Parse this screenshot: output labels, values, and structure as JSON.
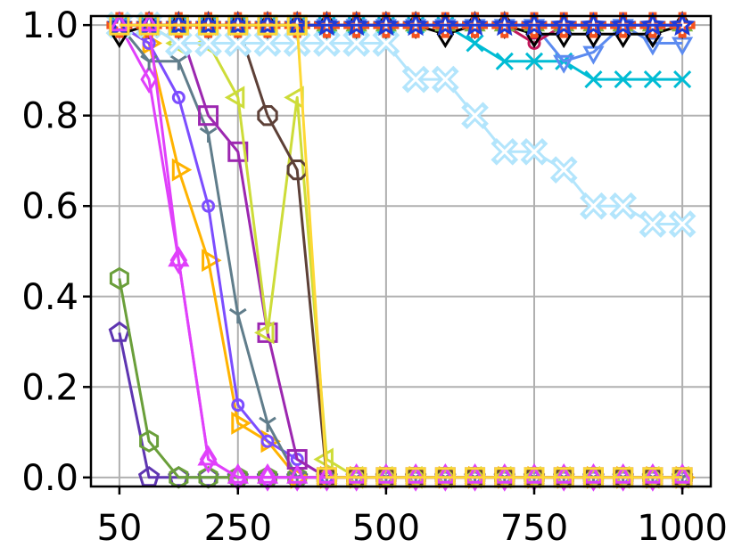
{
  "chart_data": {
    "type": "line",
    "title": "",
    "xlabel": "",
    "ylabel": "",
    "xlim": [
      2,
      1048
    ],
    "ylim": [
      -0.02,
      1.02
    ],
    "grid": true,
    "legend": "none",
    "x_ticks": [
      50,
      250,
      500,
      750,
      1000
    ],
    "x_tick_labels": [
      "50",
      "250",
      "500",
      "750",
      "1000"
    ],
    "y_ticks": [
      0.0,
      0.2,
      0.4,
      0.6,
      0.8,
      1.0
    ],
    "y_tick_labels": [
      "0.0",
      "0.2",
      "0.4",
      "0.6",
      "0.8",
      "1.0"
    ],
    "x": [
      50,
      100,
      150,
      200,
      250,
      300,
      350,
      400,
      450,
      500,
      550,
      600,
      650,
      700,
      750,
      800,
      850,
      900,
      950,
      1000
    ],
    "series": [
      {
        "marker": "pentagon",
        "color": "#5e35b1",
        "values": [
          0.32,
          0.0,
          0.0,
          0.0,
          0.0,
          0.0,
          0.0,
          0.0,
          0.0,
          0.0,
          0.0,
          0.0,
          0.0,
          0.0,
          0.0,
          0.0,
          0.0,
          0.0,
          0.0,
          0.0
        ]
      },
      {
        "marker": "hexagon",
        "color": "#6a9f3a",
        "values": [
          0.44,
          0.08,
          0.0,
          0.0,
          0.0,
          0.0,
          0.0,
          0.0,
          0.0,
          0.0,
          0.0,
          0.0,
          0.0,
          0.0,
          0.0,
          0.0,
          0.0,
          0.0,
          0.0,
          0.0
        ]
      },
      {
        "marker": "diamond",
        "color": "#e040fb",
        "values": [
          1.0,
          0.88,
          0.48,
          0.04,
          0.0,
          0.0,
          0.0,
          0.0,
          0.0,
          0.0,
          0.0,
          0.0,
          0.0,
          0.0,
          0.0,
          0.0,
          0.0,
          0.0,
          0.0,
          0.0
        ]
      },
      {
        "marker": "triangle-right",
        "color": "#ffb300",
        "values": [
          1.0,
          0.96,
          0.68,
          0.48,
          0.12,
          0.08,
          0.0,
          0.0,
          0.0,
          0.0,
          0.0,
          0.0,
          0.0,
          0.0,
          0.0,
          0.0,
          0.0,
          0.0,
          0.0,
          0.0
        ]
      },
      {
        "marker": "circle",
        "color": "#7c4dff",
        "values": [
          1.0,
          0.96,
          0.84,
          0.6,
          0.16,
          0.08,
          0.04,
          0.0,
          0.0,
          0.0,
          0.0,
          0.0,
          0.0,
          0.0,
          0.0,
          0.0,
          0.0,
          0.0,
          0.0,
          0.0
        ]
      },
      {
        "marker": "tri-down",
        "color": "#607d8b",
        "values": [
          1.0,
          0.92,
          0.92,
          0.76,
          0.36,
          0.12,
          0.0,
          0.0,
          0.0,
          0.0,
          0.0,
          0.0,
          0.0,
          0.0,
          0.0,
          0.0,
          0.0,
          0.0,
          0.0,
          0.0
        ]
      },
      {
        "marker": "square",
        "color": "#9c27b0",
        "values": [
          1.0,
          1.0,
          1.0,
          0.8,
          0.72,
          0.32,
          0.04,
          0.0,
          0.0,
          0.0,
          0.0,
          0.0,
          0.0,
          0.0,
          0.0,
          0.0,
          0.0,
          0.0,
          0.0,
          0.0
        ]
      },
      {
        "marker": "triangle-left",
        "color": "#cddc39",
        "values": [
          1.0,
          1.0,
          0.96,
          0.96,
          0.84,
          0.32,
          0.84,
          0.04,
          0.0,
          0.0,
          0.0,
          0.0,
          0.0,
          0.0,
          0.0,
          0.0,
          0.0,
          0.0,
          0.0,
          0.0
        ]
      },
      {
        "marker": "octagon",
        "color": "#5d4037",
        "values": [
          1.0,
          1.0,
          1.0,
          1.0,
          1.0,
          0.8,
          0.68,
          0.0,
          0.0,
          0.0,
          0.0,
          0.0,
          0.0,
          0.0,
          0.0,
          0.0,
          0.0,
          0.0,
          0.0,
          0.0
        ]
      },
      {
        "marker": "x-thick",
        "color": "#b3e5fc",
        "values": [
          1.0,
          1.0,
          0.96,
          0.96,
          0.96,
          0.96,
          0.96,
          0.96,
          0.96,
          0.96,
          0.88,
          0.88,
          0.8,
          0.72,
          0.72,
          0.68,
          0.6,
          0.6,
          0.56,
          0.56
        ]
      },
      {
        "marker": "x",
        "color": "#00bcd4",
        "values": [
          1.0,
          1.0,
          1.0,
          1.0,
          1.0,
          1.0,
          1.0,
          1.0,
          1.0,
          1.0,
          1.0,
          1.0,
          0.96,
          0.92,
          0.92,
          0.92,
          0.88,
          0.88,
          0.88,
          0.88
        ]
      },
      {
        "marker": "triangle-down",
        "color": "#5c8bf0",
        "values": [
          1.0,
          1.0,
          1.0,
          1.0,
          1.0,
          1.0,
          1.0,
          1.0,
          1.0,
          1.0,
          1.0,
          1.0,
          1.0,
          1.0,
          1.0,
          0.92,
          0.94,
          1.0,
          0.96,
          0.96
        ]
      },
      {
        "marker": "circle",
        "color": "#c2185b",
        "values": [
          1.0,
          1.0,
          1.0,
          1.0,
          1.0,
          1.0,
          1.0,
          1.0,
          1.0,
          1.0,
          1.0,
          1.0,
          1.0,
          1.0,
          0.96,
          1.0,
          1.0,
          1.0,
          1.0,
          1.0
        ]
      },
      {
        "marker": "diamond",
        "color": "#000000",
        "values": [
          0.98,
          1.0,
          1.0,
          1.0,
          1.0,
          1.0,
          1.0,
          1.0,
          1.0,
          1.0,
          1.0,
          0.98,
          1.0,
          1.0,
          0.98,
          0.98,
          0.98,
          0.98,
          0.98,
          1.0
        ]
      },
      {
        "marker": "triangle-up",
        "color": "#7cb342",
        "values": [
          1.0,
          1.0,
          1.0,
          1.0,
          1.0,
          1.0,
          1.0,
          1.0,
          1.0,
          1.0,
          1.0,
          1.0,
          1.0,
          1.0,
          1.0,
          1.0,
          1.0,
          1.0,
          1.0,
          1.0
        ]
      },
      {
        "marker": "plus-thick",
        "color": "#f4511e",
        "values": [
          1.0,
          1.0,
          1.0,
          1.0,
          1.0,
          1.0,
          1.0,
          1.0,
          1.0,
          1.0,
          1.0,
          1.0,
          1.0,
          1.0,
          1.0,
          1.0,
          1.0,
          1.0,
          1.0,
          1.0
        ]
      },
      {
        "marker": "star",
        "color": "#1e3bd6",
        "values": [
          1.0,
          1.0,
          1.0,
          1.0,
          1.0,
          1.0,
          1.0,
          1.0,
          1.0,
          1.0,
          1.0,
          1.0,
          1.0,
          1.0,
          1.0,
          1.0,
          1.0,
          1.0,
          1.0,
          1.0
        ]
      },
      {
        "marker": "triangle-up",
        "color": "#e040fb",
        "values": [
          1.0,
          1.0,
          0.48,
          0.04,
          0.0,
          0.0,
          0.0,
          0.0,
          0.0,
          0.0,
          0.0,
          0.0,
          0.0,
          0.0,
          0.0,
          0.0,
          0.0,
          0.0,
          0.0,
          0.0
        ]
      },
      {
        "marker": "square",
        "color": "#fdd835",
        "values": [
          1.0,
          1.0,
          1.0,
          1.0,
          1.0,
          1.0,
          1.0,
          0.0,
          0.0,
          0.0,
          0.0,
          0.0,
          0.0,
          0.0,
          0.0,
          0.0,
          0.0,
          0.0,
          0.0,
          0.0
        ]
      }
    ]
  }
}
